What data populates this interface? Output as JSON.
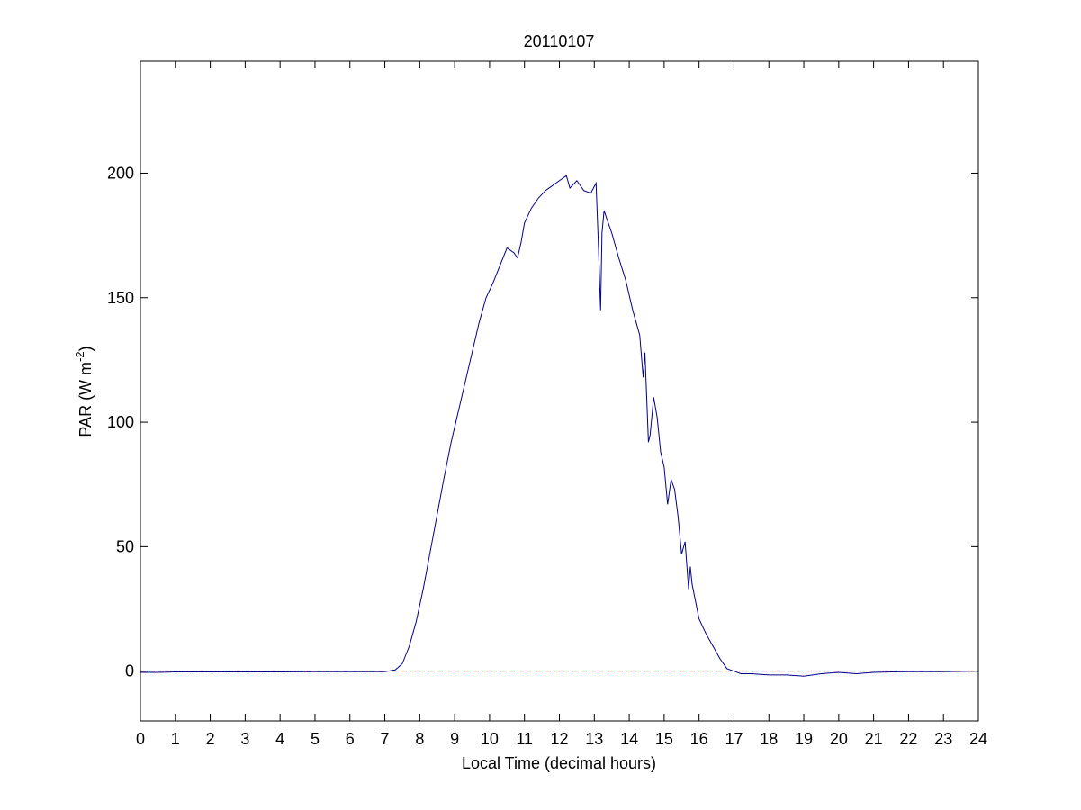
{
  "chart_data": {
    "type": "line",
    "title": "20110107",
    "xlabel": "Local Time (decimal hours)",
    "ylabel_main": "PAR (W m",
    "ylabel_sup": "-2",
    "ylabel_close": ")",
    "xlim": [
      0,
      24
    ],
    "ylim": [
      -20,
      245
    ],
    "xticks": [
      0,
      1,
      2,
      3,
      4,
      5,
      6,
      7,
      8,
      9,
      10,
      11,
      12,
      13,
      14,
      15,
      16,
      17,
      18,
      19,
      20,
      21,
      22,
      23,
      24
    ],
    "yticks": [
      0,
      50,
      100,
      150,
      200
    ],
    "grid": false,
    "series": [
      {
        "color": "#00008b",
        "style": "solid",
        "x": [
          0,
          0.5,
          1,
          2,
          3,
          4,
          5,
          6,
          7,
          7.3,
          7.5,
          7.7,
          7.9,
          8.1,
          8.3,
          8.5,
          8.7,
          8.9,
          9.1,
          9.3,
          9.5,
          9.7,
          9.9,
          10.1,
          10.3,
          10.5,
          10.7,
          10.8,
          10.9,
          11.0,
          11.2,
          11.4,
          11.6,
          11.8,
          12.0,
          12.2,
          12.3,
          12.5,
          12.7,
          12.9,
          13.05,
          13.12,
          13.18,
          13.22,
          13.28,
          13.35,
          13.5,
          13.7,
          13.9,
          14.1,
          14.3,
          14.4,
          14.45,
          14.5,
          14.55,
          14.6,
          14.7,
          14.8,
          14.9,
          15.0,
          15.1,
          15.2,
          15.3,
          15.4,
          15.5,
          15.6,
          15.7,
          15.75,
          15.8,
          15.9,
          16.0,
          16.2,
          16.4,
          16.6,
          16.8,
          17.0,
          17.2,
          17.5,
          18,
          18.5,
          19,
          19.5,
          20,
          20.5,
          21,
          21.5,
          22,
          23,
          24
        ],
        "y": [
          -0.5,
          -0.5,
          -0.3,
          -0.3,
          -0.3,
          -0.3,
          -0.2,
          -0.2,
          -0.2,
          0.5,
          3,
          10,
          20,
          33,
          48,
          63,
          78,
          92,
          104,
          116,
          128,
          140,
          150,
          156,
          163,
          170,
          168,
          166,
          172,
          180,
          186,
          190,
          193,
          195,
          197,
          199,
          194,
          197,
          193,
          192,
          196,
          170,
          145,
          176,
          185,
          182,
          176,
          166,
          157,
          145,
          135,
          118,
          128,
          110,
          92,
          95,
          110,
          102,
          88,
          82,
          67,
          77,
          73,
          62,
          47,
          52,
          33,
          42,
          35,
          28,
          21,
          15,
          10,
          5,
          1,
          0,
          -1,
          -1,
          -1.5,
          -1.5,
          -2,
          -1,
          -0.5,
          -1,
          -0.5,
          -0.3,
          -0.2,
          -0.2,
          0
        ]
      },
      {
        "color": "#b22222",
        "style": "dashed",
        "x": [
          0,
          24
        ],
        "y": [
          0,
          0
        ]
      }
    ]
  }
}
